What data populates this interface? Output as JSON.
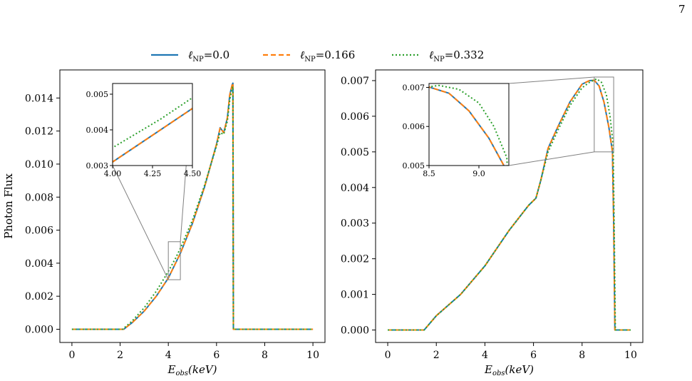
{
  "page_number": "7",
  "legend": [
    {
      "label": "ℓNP=0.0",
      "color": "#1f77b4",
      "dash": "solid"
    },
    {
      "label": "ℓNP=0.166",
      "color": "#ff7f0e",
      "dash": "dashed"
    },
    {
      "label": "ℓNP=0.332",
      "color": "#2ca02c",
      "dash": "dotted"
    }
  ],
  "chart_data": [
    {
      "type": "line",
      "ylabel": "Photon Flux",
      "xlabel": "Eobs(keV)",
      "xlim": [
        -0.5,
        10.5
      ],
      "ylim": [
        -0.0008,
        0.0157
      ],
      "xticks": [
        0,
        2,
        4,
        6,
        8,
        10
      ],
      "yticks": [
        0.0,
        0.002,
        0.004,
        0.006,
        0.008,
        0.01,
        0.012,
        0.014
      ],
      "ytick_labels": [
        "0.000",
        "0.002",
        "0.004",
        "0.006",
        "0.008",
        "0.010",
        "0.012",
        "0.014"
      ],
      "series": [
        {
          "name": "ℓNP=0.0",
          "color": "#1f77b4",
          "dash": "solid",
          "x": [
            0,
            2.15,
            2.5,
            3,
            3.5,
            4,
            4.5,
            5,
            5.5,
            6,
            6.15,
            6.3,
            6.45,
            6.55,
            6.65,
            6.68,
            6.7,
            7,
            10
          ],
          "y": [
            0,
            0,
            0.0004,
            0.0011,
            0.002,
            0.0031,
            0.0046,
            0.0064,
            0.0086,
            0.0112,
            0.0122,
            0.0119,
            0.0128,
            0.0142,
            0.0148,
            0.0149,
            0,
            0,
            0
          ]
        },
        {
          "name": "ℓNP=0.166",
          "color": "#ff7f0e",
          "dash": "dashed",
          "x": [
            0,
            2.15,
            2.5,
            3,
            3.5,
            4,
            4.5,
            5,
            5.5,
            6,
            6.15,
            6.3,
            6.45,
            6.55,
            6.65,
            6.68,
            6.7,
            7,
            10
          ],
          "y": [
            0,
            0,
            0.0004,
            0.0011,
            0.002,
            0.0031,
            0.0046,
            0.0064,
            0.0086,
            0.0112,
            0.0122,
            0.0119,
            0.0128,
            0.0142,
            0.0148,
            0.0149,
            0,
            0,
            0
          ]
        },
        {
          "name": "ℓNP=0.332",
          "color": "#2ca02c",
          "dash": "dotted",
          "x": [
            0,
            2.1,
            2.5,
            3,
            3.5,
            4,
            4.3,
            4.5,
            5,
            5.5,
            6,
            6.15,
            6.3,
            6.45,
            6.55,
            6.65,
            6.68,
            6.7,
            7,
            10
          ],
          "y": [
            0,
            0,
            0.0005,
            0.0013,
            0.0023,
            0.0035,
            0.0043,
            0.0049,
            0.0066,
            0.0087,
            0.0111,
            0.0119,
            0.0118,
            0.0126,
            0.0139,
            0.0146,
            0.0147,
            0,
            0,
            0
          ]
        }
      ],
      "zoom_rect": {
        "x": [
          4.0,
          4.5
        ],
        "y": [
          0.003,
          0.0053
        ]
      },
      "inset": {
        "xlim": [
          4.0,
          4.5
        ],
        "ylim": [
          0.003,
          0.0053
        ],
        "xticks": [
          4.0,
          4.25,
          4.5
        ],
        "xtick_labels": [
          "4.00",
          "4.25",
          "4.50"
        ],
        "yticks": [
          0.003,
          0.004,
          0.005
        ],
        "ytick_labels": [
          "0.003",
          "0.004",
          "0.005"
        ]
      }
    },
    {
      "type": "line",
      "xlabel": "Eobs(keV)",
      "xlim": [
        -0.5,
        10.5
      ],
      "ylim": [
        -0.00035,
        0.0073
      ],
      "xticks": [
        0,
        2,
        4,
        6,
        8,
        10
      ],
      "yticks": [
        0.0,
        0.001,
        0.002,
        0.003,
        0.004,
        0.005,
        0.006,
        0.007
      ],
      "ytick_labels": [
        "0.000",
        "0.001",
        "0.002",
        "0.003",
        "0.004",
        "0.005",
        "0.006",
        "0.007"
      ],
      "series": [
        {
          "name": "ℓNP=0.0",
          "color": "#1f77b4",
          "dash": "solid",
          "x": [
            0,
            1.5,
            2,
            3,
            4,
            5,
            5.8,
            6.1,
            6.3,
            6.6,
            7,
            7.5,
            8,
            8.3,
            8.5,
            8.7,
            8.9,
            9.1,
            9.25,
            9.3,
            9.35,
            10
          ],
          "y": [
            0,
            0,
            0.0004,
            0.001,
            0.0018,
            0.0028,
            0.0035,
            0.0037,
            0.0042,
            0.0051,
            0.0057,
            0.0064,
            0.0069,
            0.007,
            0.00701,
            0.00685,
            0.0064,
            0.0057,
            0.005,
            0.003,
            0,
            0
          ]
        },
        {
          "name": "ℓNP=0.166",
          "color": "#ff7f0e",
          "dash": "dashed",
          "x": [
            0,
            1.5,
            2,
            3,
            4,
            5,
            5.8,
            6.1,
            6.3,
            6.6,
            7,
            7.5,
            8,
            8.3,
            8.5,
            8.7,
            8.9,
            9.1,
            9.25,
            9.3,
            9.35,
            10
          ],
          "y": [
            0,
            0,
            0.0004,
            0.001,
            0.0018,
            0.0028,
            0.0035,
            0.0037,
            0.0042,
            0.0051,
            0.0057,
            0.0064,
            0.0069,
            0.007,
            0.00701,
            0.00685,
            0.0064,
            0.0057,
            0.005,
            0.003,
            0,
            0
          ]
        },
        {
          "name": "ℓNP=0.332",
          "color": "#2ca02c",
          "dash": "dotted",
          "x": [
            0,
            1.5,
            2,
            3,
            4,
            5,
            5.8,
            6.1,
            6.3,
            6.6,
            7,
            7.5,
            8,
            8.3,
            8.6,
            8.8,
            9.0,
            9.15,
            9.28,
            9.32,
            9.37,
            10
          ],
          "y": [
            0,
            0,
            0.0004,
            0.001,
            0.0018,
            0.0028,
            0.0035,
            0.0037,
            0.0042,
            0.005,
            0.0056,
            0.0063,
            0.0068,
            0.00695,
            0.00705,
            0.00695,
            0.0066,
            0.006,
            0.0052,
            0.003,
            0,
            0
          ]
        }
      ],
      "zoom_rect": {
        "x": [
          8.5,
          9.3
        ],
        "y": [
          0.005,
          0.0071
        ]
      },
      "inset": {
        "xlim": [
          8.5,
          9.3
        ],
        "ylim": [
          0.005,
          0.0071
        ],
        "xticks": [
          8.5,
          9.0
        ],
        "xtick_labels": [
          "8.5",
          "9.0"
        ],
        "yticks": [
          0.005,
          0.006,
          0.007
        ],
        "ytick_labels": [
          "0.005",
          "0.006",
          "0.007"
        ]
      }
    }
  ]
}
